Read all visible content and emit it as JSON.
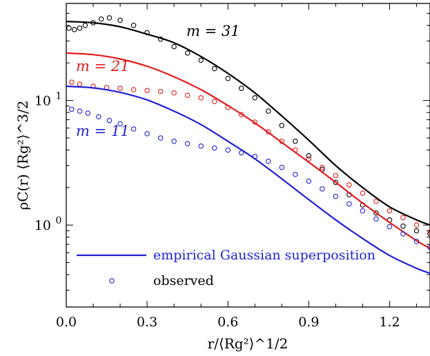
{
  "chart_data": {
    "type": "line",
    "xlabel": "r/⟨Rg²⟩^1/2",
    "ylabel": "ρC(r) ⟨Rg²⟩^3/2",
    "xlim": [
      0.0,
      1.35
    ],
    "ylim": [
      0.22,
      60
    ],
    "yscale": "log",
    "grid": false,
    "legend_position": "bottom-left",
    "x_ticks": [
      {
        "value": 0.0,
        "label": "0.0"
      },
      {
        "value": 0.3,
        "label": "0.3"
      },
      {
        "value": 0.6,
        "label": "0.6"
      },
      {
        "value": 0.9,
        "label": "0.9"
      },
      {
        "value": 1.2,
        "label": "1.2"
      }
    ],
    "y_ticks": [
      {
        "value": 1,
        "label": "10",
        "exp": "0"
      },
      {
        "value": 10,
        "label": "10",
        "exp": "1"
      }
    ],
    "series": [
      {
        "name": "m = 31",
        "color": "#000000",
        "model": {
          "x": [
            0.0,
            0.1,
            0.2,
            0.3,
            0.4,
            0.5,
            0.6,
            0.7,
            0.8,
            0.9,
            1.0,
            1.1,
            1.2,
            1.3,
            1.35
          ],
          "y": [
            43,
            42,
            39,
            34,
            29,
            22.5,
            16.5,
            11.5,
            7.5,
            4.8,
            3.0,
            2.0,
            1.4,
            1.1,
            1.0
          ]
        },
        "observed": {
          "x": [
            0.01,
            0.03,
            0.05,
            0.07,
            0.1,
            0.13,
            0.16,
            0.2,
            0.25,
            0.3,
            0.35,
            0.4,
            0.45,
            0.5,
            0.55,
            0.6,
            0.65,
            0.7,
            0.75,
            0.8,
            0.85,
            0.9,
            0.95,
            1.0,
            1.05,
            1.1,
            1.15,
            1.2,
            1.25,
            1.3,
            1.35
          ],
          "y": [
            38,
            37,
            38,
            40,
            42,
            45,
            46,
            44,
            40,
            35,
            31,
            27,
            24,
            21,
            18,
            15,
            12.5,
            10.5,
            8.2,
            6.3,
            4.7,
            3.6,
            2.8,
            2.2,
            1.75,
            1.45,
            1.25,
            1.1,
            0.98,
            0.9,
            0.85
          ]
        }
      },
      {
        "name": "m = 21",
        "color": "#e31a1c",
        "model": {
          "x": [
            0.0,
            0.1,
            0.2,
            0.3,
            0.4,
            0.5,
            0.6,
            0.7,
            0.8,
            0.9,
            1.0,
            1.1,
            1.2,
            1.3,
            1.35
          ],
          "y": [
            24,
            23.3,
            21.5,
            18.8,
            15.5,
            12.2,
            9.1,
            6.6,
            4.6,
            3.2,
            2.2,
            1.5,
            1.05,
            0.75,
            0.65
          ]
        },
        "observed": {
          "x": [
            0.02,
            0.05,
            0.1,
            0.15,
            0.2,
            0.25,
            0.3,
            0.35,
            0.4,
            0.45,
            0.5,
            0.55,
            0.6,
            0.65,
            0.7,
            0.75,
            0.8,
            0.85,
            0.9,
            0.95,
            1.0,
            1.05,
            1.1,
            1.15,
            1.2,
            1.25,
            1.3,
            1.35
          ],
          "y": [
            14,
            13.5,
            13,
            12.7,
            12.5,
            12.2,
            12,
            11.8,
            11.5,
            11,
            10.5,
            9.8,
            8.8,
            7.7,
            6.7,
            5.6,
            4.7,
            4.0,
            3.4,
            2.9,
            2.5,
            2.1,
            1.8,
            1.55,
            1.3,
            1.15,
            1.0,
            0.88
          ]
        }
      },
      {
        "name": "m = 11",
        "color": "#1f1fd6",
        "model": {
          "x": [
            0.0,
            0.1,
            0.2,
            0.3,
            0.4,
            0.5,
            0.6,
            0.7,
            0.8,
            0.9,
            1.0,
            1.1,
            1.2,
            1.3,
            1.35
          ],
          "y": [
            13,
            12.6,
            11.6,
            10.1,
            8.2,
            6.4,
            4.7,
            3.4,
            2.35,
            1.6,
            1.1,
            0.78,
            0.57,
            0.45,
            0.41
          ]
        },
        "observed": {
          "x": [
            0.02,
            0.05,
            0.08,
            0.12,
            0.16,
            0.2,
            0.25,
            0.3,
            0.35,
            0.4,
            0.45,
            0.5,
            0.55,
            0.6,
            0.65,
            0.7,
            0.75,
            0.8,
            0.85,
            0.9,
            0.95,
            1.0,
            1.05,
            1.1,
            1.15,
            1.2,
            1.25,
            1.3,
            1.35
          ],
          "y": [
            8.5,
            8.2,
            7.9,
            7.4,
            6.9,
            6.5,
            5.9,
            5.4,
            5.0,
            4.7,
            4.5,
            4.3,
            4.15,
            4.0,
            3.8,
            3.55,
            3.25,
            2.9,
            2.55,
            2.25,
            1.95,
            1.7,
            1.48,
            1.3,
            1.12,
            0.97,
            0.85,
            0.74,
            0.66
          ]
        }
      }
    ],
    "series_labels": [
      {
        "text": "m = 31",
        "color": "#000000"
      },
      {
        "text": "m = 21",
        "color": "#e31a1c"
      },
      {
        "text": "m = 11",
        "color": "#1f1fd6"
      }
    ],
    "legend": [
      {
        "label": "empirical Gaussian superposition",
        "marker": "line",
        "color": "#1f1fd6"
      },
      {
        "label": "observed",
        "marker": "circle",
        "color": "#1f1fd6"
      }
    ]
  }
}
